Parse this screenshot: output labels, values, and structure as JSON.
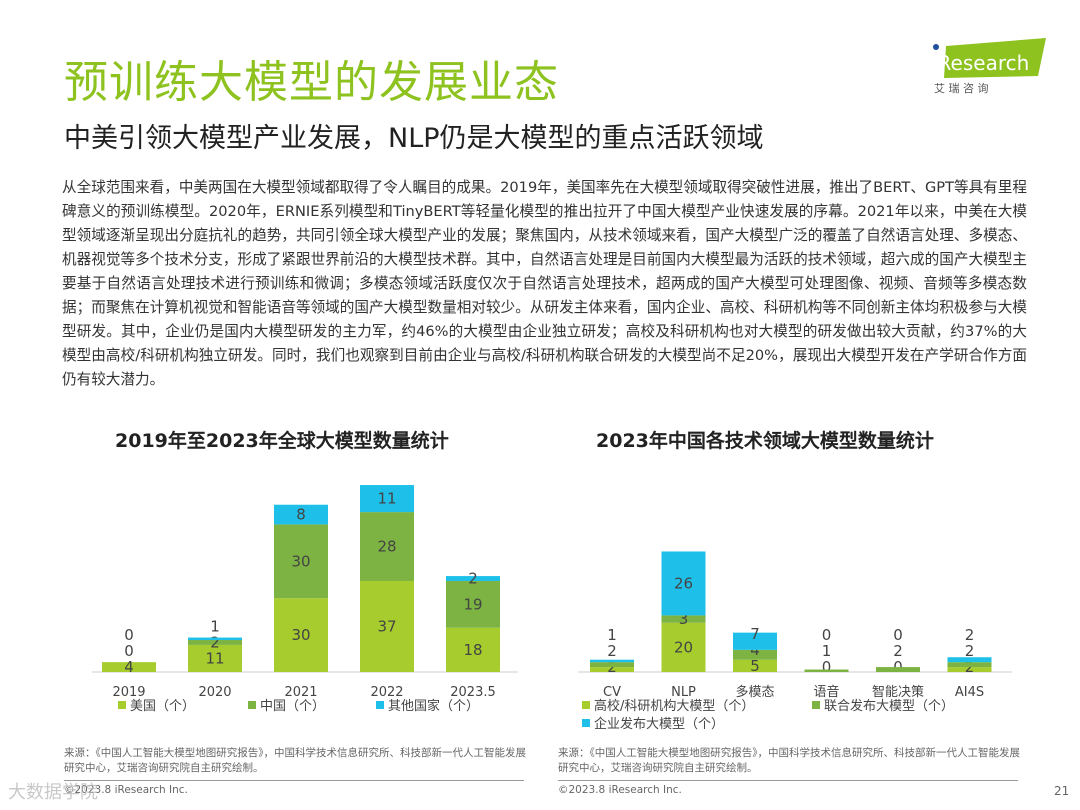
{
  "header": {
    "title": "预训练大模型的发展业态",
    "subtitle": "中美引领大模型产业发展，NLP仍是大模型的重点活跃领域",
    "logo_text": "iResearch",
    "logo_cn": "艾 瑞 咨 询"
  },
  "body_text": "从全球范围来看，中美两国在大模型领域都取得了令人瞩目的成果。2019年，美国率先在大模型领域取得突破性进展，推出了BERT、GPT等具有里程碑意义的预训练模型。2020年，ERNIE系列模型和TinyBERT等轻量化模型的推出拉开了中国大模型产业快速发展的序幕。2021年以来，中美在大模型领域逐渐呈现出分庭抗礼的趋势，共同引领全球大模型产业的发展；聚焦国内，从技术领域来看，国产大模型广泛的覆盖了自然语言处理、多模态、机器视觉等多个技术分支，形成了紧跟世界前沿的大模型技术群。其中，自然语言处理是目前国内大模型最为活跃的技术领域，超六成的国产大模型主要基于自然语言处理技术进行预训练和微调；多模态领域活跃度仅次于自然语言处理技术，超两成的国产大模型可处理图像、视频、音频等多模态数据；而聚焦在计算机视觉和智能语音等领域的国产大模型数量相对较少。从研发主体来看，国内企业、高校、科研机构等不同创新主体均积极参与大模型研发。其中，企业仍是国内大模型研发的主力军，约46%的大模型由企业独立研发；高校及科研机构也对大模型的研发做出较大贡献，约37%的大模型由高校/科研机构独立研发。同时，我们也观察到目前由企业与高校/科研机构联合研发的大模型尚不足20%，展现出大模型开发在产学研合作方面仍有较大潜力。",
  "colors": {
    "accent": "#8dc21f",
    "series1": "#a6cc2e",
    "series2": "#7cb342",
    "series3": "#1ec0ea"
  },
  "chart_data": [
    {
      "type": "bar",
      "stacked": true,
      "title": "2019年至2023年全球大模型数量统计",
      "categories": [
        "2019",
        "2020",
        "2021",
        "2022",
        "2023.5"
      ],
      "series": [
        {
          "name": "美国（个）",
          "values": [
            4,
            11,
            30,
            37,
            18
          ]
        },
        {
          "name": "中国（个）",
          "values": [
            0,
            2,
            30,
            28,
            19
          ]
        },
        {
          "name": "其他国家（个）",
          "values": [
            0,
            1,
            8,
            11,
            2
          ]
        }
      ],
      "legend": "bottom",
      "grid": false
    },
    {
      "type": "bar",
      "stacked": true,
      "title": "2023年中国各技术领域大模型数量统计",
      "categories": [
        "CV",
        "NLP",
        "多模态",
        "语音",
        "智能决策",
        "AI4S"
      ],
      "series": [
        {
          "name": "高校/科研机构大模型（个）",
          "values": [
            2,
            20,
            5,
            0,
            0,
            2
          ]
        },
        {
          "name": "联合发布大模型（个）",
          "values": [
            2,
            3,
            4,
            1,
            2,
            2
          ]
        },
        {
          "name": "企业发布大模型（个）",
          "values": [
            1,
            26,
            7,
            0,
            0,
            2
          ]
        }
      ],
      "legend": "bottom",
      "grid": false
    }
  ],
  "sources": [
    "来源：《中国人工智能大模型地图研究报告》，中国科学技术信息研究所、科技部新一代人工智能发展研究中心，艾瑞咨询研究院自主研究绘制。",
    "来源：《中国人工智能大模型地图研究报告》，中国科学技术信息研究所、科技部新一代人工智能发展研究中心，艾瑞咨询研究院自主研究绘制。"
  ],
  "footer": {
    "copyright_left": "©2023.8 iResearch Inc.",
    "copyright_right": "©2023.8 iResearch Inc.",
    "page": "21",
    "watermark": "大数据学院"
  }
}
